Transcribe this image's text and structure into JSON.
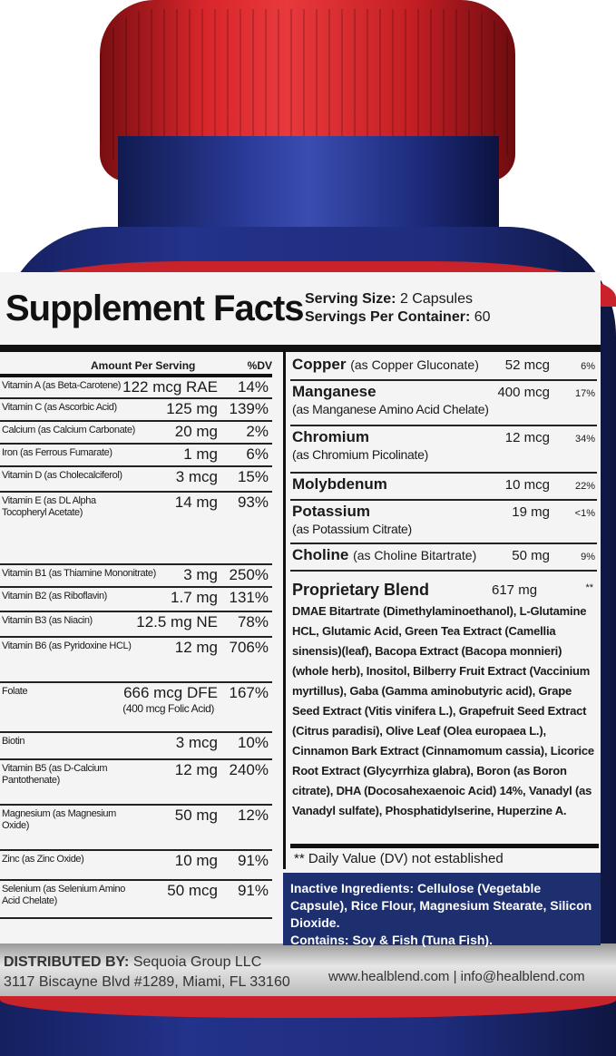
{
  "header": {
    "title": "Supplement Facts",
    "serving_size_label": "Serving Size:",
    "serving_size": "2 Capsules",
    "servings_label": "Servings Per Container:",
    "servings": "60"
  },
  "left_table": {
    "col_amount": "Amount Per Serving",
    "col_dv": "%DV",
    "rows": [
      {
        "name": "Vitamin A (as Beta-Carotene)",
        "amount": "122 mcg RAE",
        "dv": "14%"
      },
      {
        "name": "Vitamin C (as Ascorbic Acid)",
        "amount": "125 mg",
        "dv": "139%"
      },
      {
        "name": "Calcium (as Calcium Carbonate)",
        "amount": "20 mg",
        "dv": "2%"
      },
      {
        "name": "Iron (as Ferrous Fumarate)",
        "amount": "1 mg",
        "dv": "6%"
      },
      {
        "name": "Vitamin D (as Cholecalciferol)",
        "amount": "3 mcg",
        "dv": "15%"
      },
      {
        "name": "Vitamin E (as DL Alpha Tocopheryl Acetate)",
        "amount": "14 mg",
        "dv": "93%"
      },
      {
        "name": "Vitamin B1 (as Thiamine Mononitrate)",
        "amount": "3 mg",
        "dv": "250%"
      },
      {
        "name": "Vitamin B2 (as Riboflavin)",
        "amount": "1.7 mg",
        "dv": "131%"
      },
      {
        "name": "Vitamin B3 (as Niacin)",
        "amount": "12.5 mg NE",
        "dv": "78%"
      },
      {
        "name": "Vitamin B6 (as Pyridoxine HCL)",
        "amount": "12 mg",
        "dv": "706%"
      },
      {
        "name": "Folate",
        "amount": "666 mcg DFE",
        "sub": "(400 mcg Folic Acid)",
        "dv": "167%"
      },
      {
        "name": "Biotin",
        "amount": "3 mcg",
        "dv": "10%"
      },
      {
        "name": "Vitamin B5 (as D-Calcium Pantothenate)",
        "amount": "12 mg",
        "dv": "240%"
      },
      {
        "name": "Magnesium (as Magnesium Oxide)",
        "amount": "50 mg",
        "dv": "12%"
      },
      {
        "name": "Zinc (as Zinc Oxide)",
        "amount": "10 mg",
        "dv": "91%"
      },
      {
        "name": "Selenium (as Selenium Amino Acid Chelate)",
        "amount": "50 mcg",
        "dv": "91%"
      }
    ]
  },
  "right_table": {
    "rows": [
      {
        "name": "Copper",
        "qual": "(as Copper Gluconate)",
        "amount": "52 mcg",
        "dv": "6%"
      },
      {
        "name": "Manganese",
        "sub": "(as Manganese Amino Acid Chelate)",
        "amount": "400 mcg",
        "dv": "17%"
      },
      {
        "name": "Chromium",
        "sub": "(as Chromium Picolinate)",
        "amount": "12 mcg",
        "dv": "34%"
      },
      {
        "name": "Molybdenum",
        "amount": "10 mcg",
        "dv": "22%"
      },
      {
        "name": "Potassium",
        "sub": "(as Potassium Citrate)",
        "amount": "19 mg",
        "dv": "<1%"
      },
      {
        "name": "Choline",
        "qual": "(as Choline Bitartrate)",
        "amount": "50 mg",
        "dv": "9%"
      }
    ],
    "blend_name": "Proprietary Blend",
    "blend_amount": "617 mg",
    "blend_dv": "**",
    "blend_ingredients": "DMAE Bitartrate (Dimethylaminoethanol), L-Glutamine HCL, Glutamic Acid, Green Tea Extract (Camellia sinensis)(leaf), Bacopa Extract (Bacopa monnieri)(whole herb), Inositol, Bilberry Fruit Extract (Vaccinium myrtillus), Gaba (Gamma aminobutyric acid), Grape Seed Extract (Vitis vinifera L.), Grapefruit Seed Extract (Citrus paradisi), Olive Leaf (Olea europaea L.), Cinnamon Bark Extract (Cinnamomum cassia), Licorice Root Extract (Glycyrrhiza glabra), Boron (as Boron citrate), DHA (Docosahexaenoic Acid) 14%, Vanadyl (as Vanadyl sulfate), Phosphatidylserine, Huperzine A.",
    "footnote": "** Daily Value (DV) not established"
  },
  "inactive": {
    "text": "Inactive Ingredients: Cellulose (Vegetable Capsule), Rice Flour, Magnesium Stearate, Silicon Dioxide.",
    "contains": "Contains: Soy & Fish (Tuna Fish)."
  },
  "footer": {
    "distributed_label": "DISTRIBUTED BY:",
    "distributor": "Sequoia Group LLC",
    "address": "3117 Biscayne Blvd #1289, Miami, FL 33160",
    "web": "www.healblend.com | info@healblend.com"
  },
  "colors": {
    "cap": "#d8262b",
    "bottle": "#23328a",
    "inactive_band": "#1d2f6e",
    "label": "#f4f4f4"
  }
}
